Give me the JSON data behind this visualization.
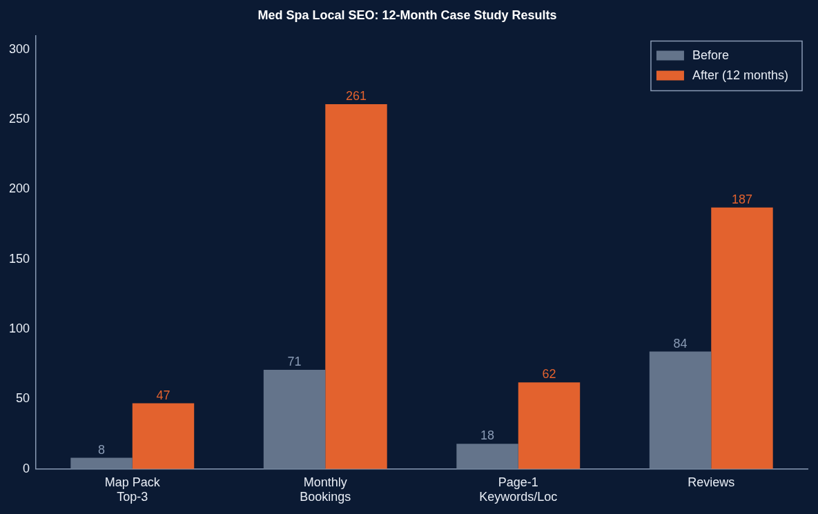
{
  "chart_data": {
    "type": "bar",
    "title": "Med Spa Local SEO: 12-Month Case Study Results",
    "categories": [
      "Map Pack\nTop-3",
      "Monthly\nBookings",
      "Page-1\nKeywords/Loc",
      "Reviews"
    ],
    "series": [
      {
        "name": "Before",
        "color": "#64748b",
        "values": [
          8,
          71,
          18,
          84
        ]
      },
      {
        "name": "After (12 months)",
        "color": "#e3622e",
        "values": [
          47,
          261,
          62,
          187
        ]
      }
    ],
    "ylim": [
      0,
      310
    ],
    "yticks": [
      0,
      50,
      100,
      150,
      200,
      250,
      300
    ],
    "grid": false,
    "legend": "top right",
    "data_labels": true
  }
}
